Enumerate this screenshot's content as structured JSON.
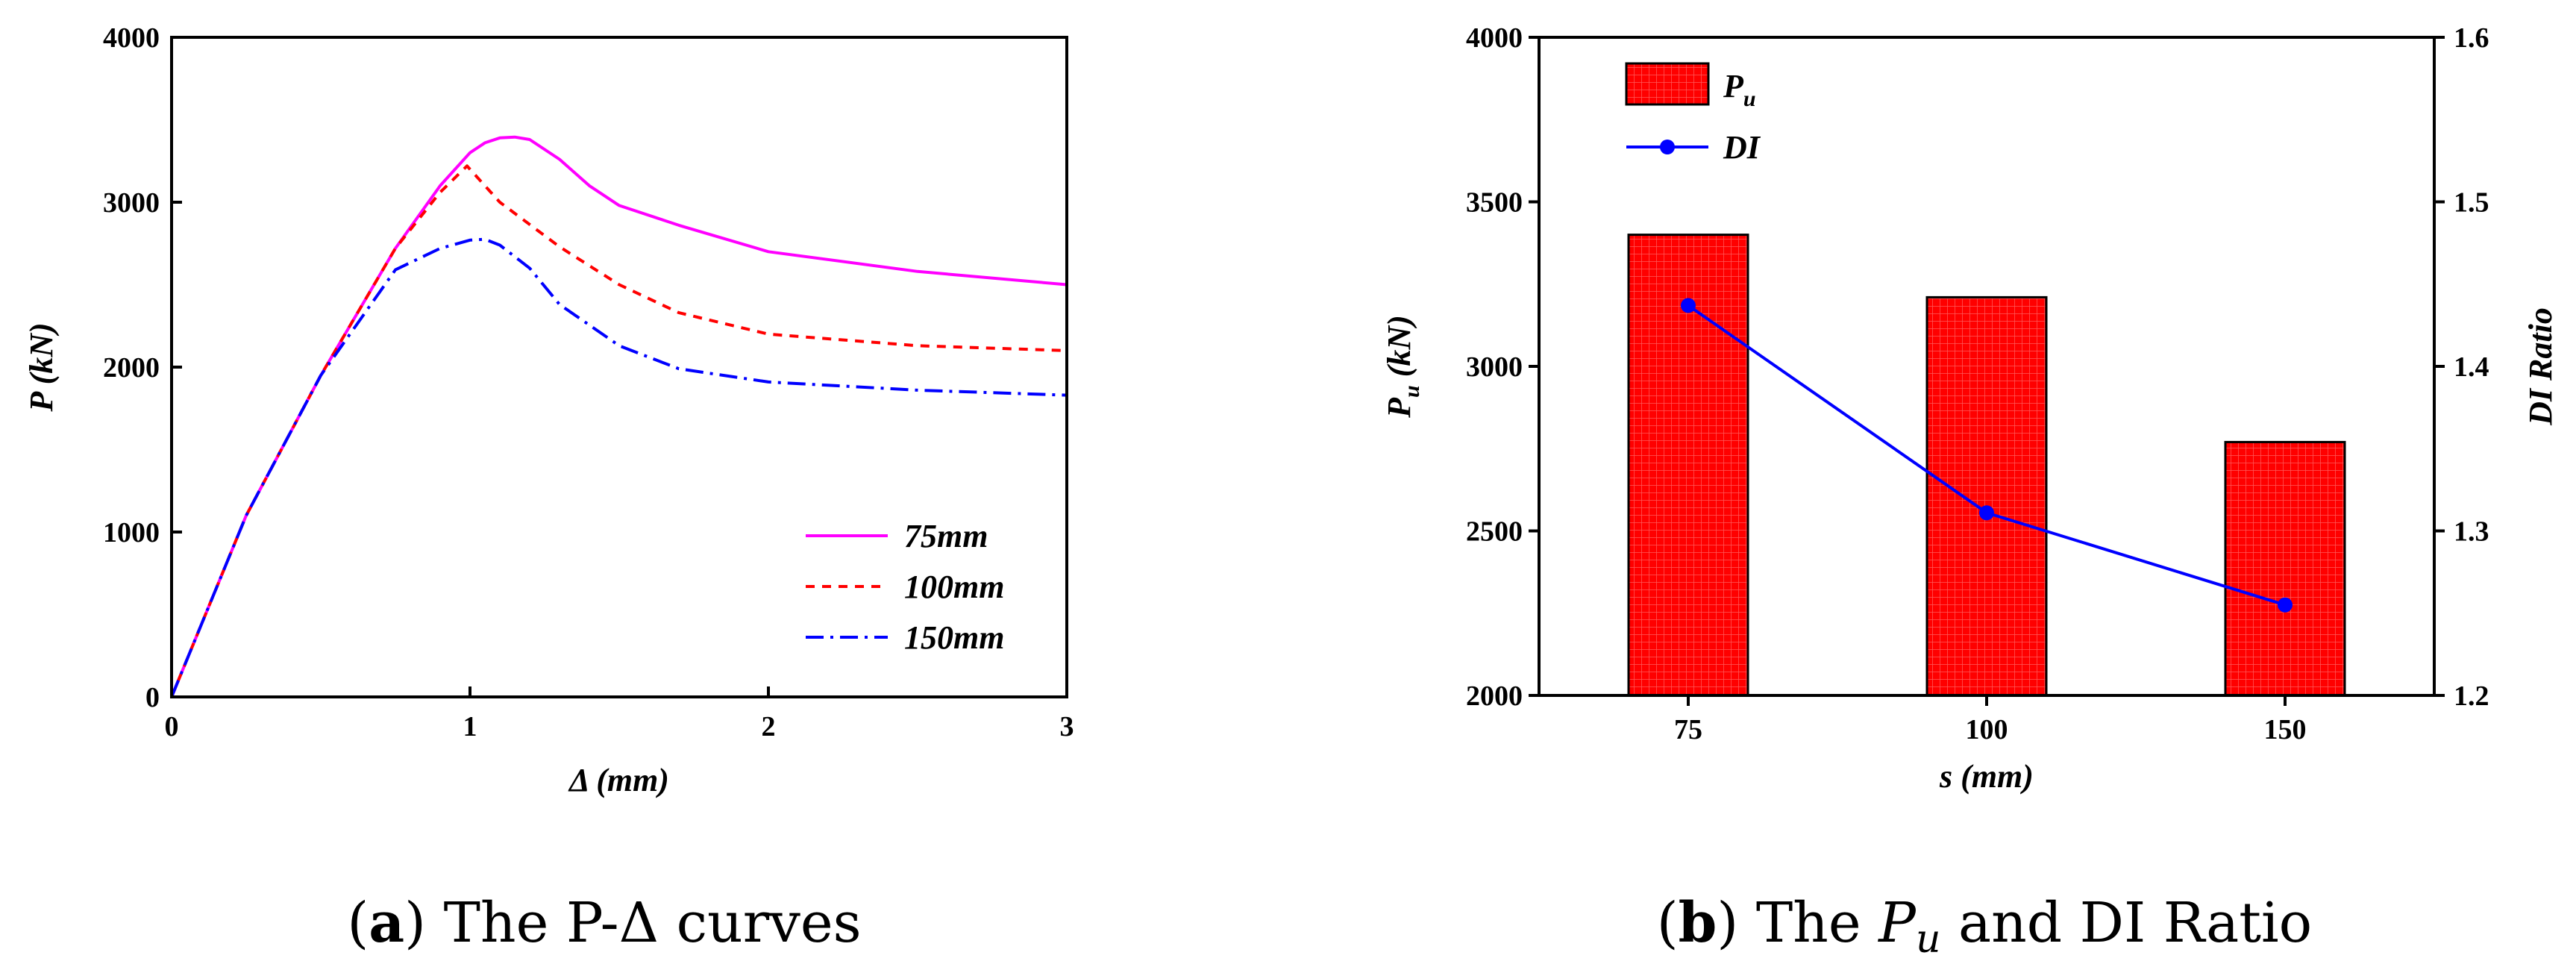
{
  "chart_data": [
    {
      "type": "line",
      "caption": {
        "letter": "a",
        "text": "The P-Δ curves"
      },
      "xlabel": "Δ (mm)",
      "ylabel": "P (kN)",
      "xlim": [
        0,
        3
      ],
      "ylim": [
        0,
        4000
      ],
      "xticks": [
        0,
        1,
        2,
        3
      ],
      "yticks": [
        0,
        1000,
        2000,
        3000,
        4000
      ],
      "legend_position": "bottom-right",
      "series": [
        {
          "name": "75mm",
          "color": "#ff00ff",
          "dash": "solid",
          "x": [
            0,
            0.25,
            0.5,
            0.75,
            0.9,
            1.0,
            1.05,
            1.1,
            1.15,
            1.2,
            1.3,
            1.4,
            1.5,
            1.7,
            2.0,
            2.5,
            3.0
          ],
          "y": [
            0,
            1100,
            1950,
            2720,
            3100,
            3300,
            3360,
            3390,
            3395,
            3380,
            3260,
            3100,
            2980,
            2860,
            2700,
            2580,
            2500
          ]
        },
        {
          "name": "100mm",
          "color": "#ff0000",
          "dash": "12,10",
          "x": [
            0,
            0.25,
            0.5,
            0.75,
            0.9,
            0.99,
            1.1,
            1.3,
            1.5,
            1.7,
            2.0,
            2.5,
            3.0
          ],
          "y": [
            0,
            1100,
            1950,
            2720,
            3060,
            3220,
            3000,
            2730,
            2500,
            2330,
            2200,
            2130,
            2100
          ]
        },
        {
          "name": "150mm",
          "color": "#0000ff",
          "dash": "24,9,4,9",
          "x": [
            0,
            0.25,
            0.5,
            0.75,
            0.9,
            1.0,
            1.05,
            1.1,
            1.2,
            1.3,
            1.5,
            1.7,
            2.0,
            2.5,
            3.0
          ],
          "y": [
            0,
            1100,
            1950,
            2590,
            2720,
            2770,
            2775,
            2740,
            2600,
            2380,
            2130,
            1990,
            1910,
            1860,
            1830
          ]
        }
      ]
    },
    {
      "type": "bar",
      "caption": {
        "letter": "b",
        "pre": "The ",
        "italic": "P",
        "sub": "u",
        "post": " and DI Ratio"
      },
      "categories": [
        "75",
        "100",
        "150"
      ],
      "xlabel": "s (mm)",
      "ylabel": "P",
      "ylabel_sub": "u",
      "ylabel_unit": " (kN)",
      "ylim": [
        2000,
        4000
      ],
      "yticks": [
        2000,
        2500,
        3000,
        3500,
        4000
      ],
      "y2label": "DI Ratio",
      "y2lim": [
        1.2,
        1.6
      ],
      "y2ticks": [
        1.2,
        1.3,
        1.4,
        1.5,
        1.6
      ],
      "legend_position": "top-left",
      "series": [
        {
          "name": "P",
          "name_sub": "u",
          "type": "bar",
          "color": "#ff0000",
          "values": [
            3400,
            3210,
            2770
          ]
        },
        {
          "name": "DI",
          "type": "line",
          "axis": "right",
          "color": "#0000ff",
          "values": [
            1.437,
            1.311,
            1.255
          ]
        }
      ]
    }
  ]
}
